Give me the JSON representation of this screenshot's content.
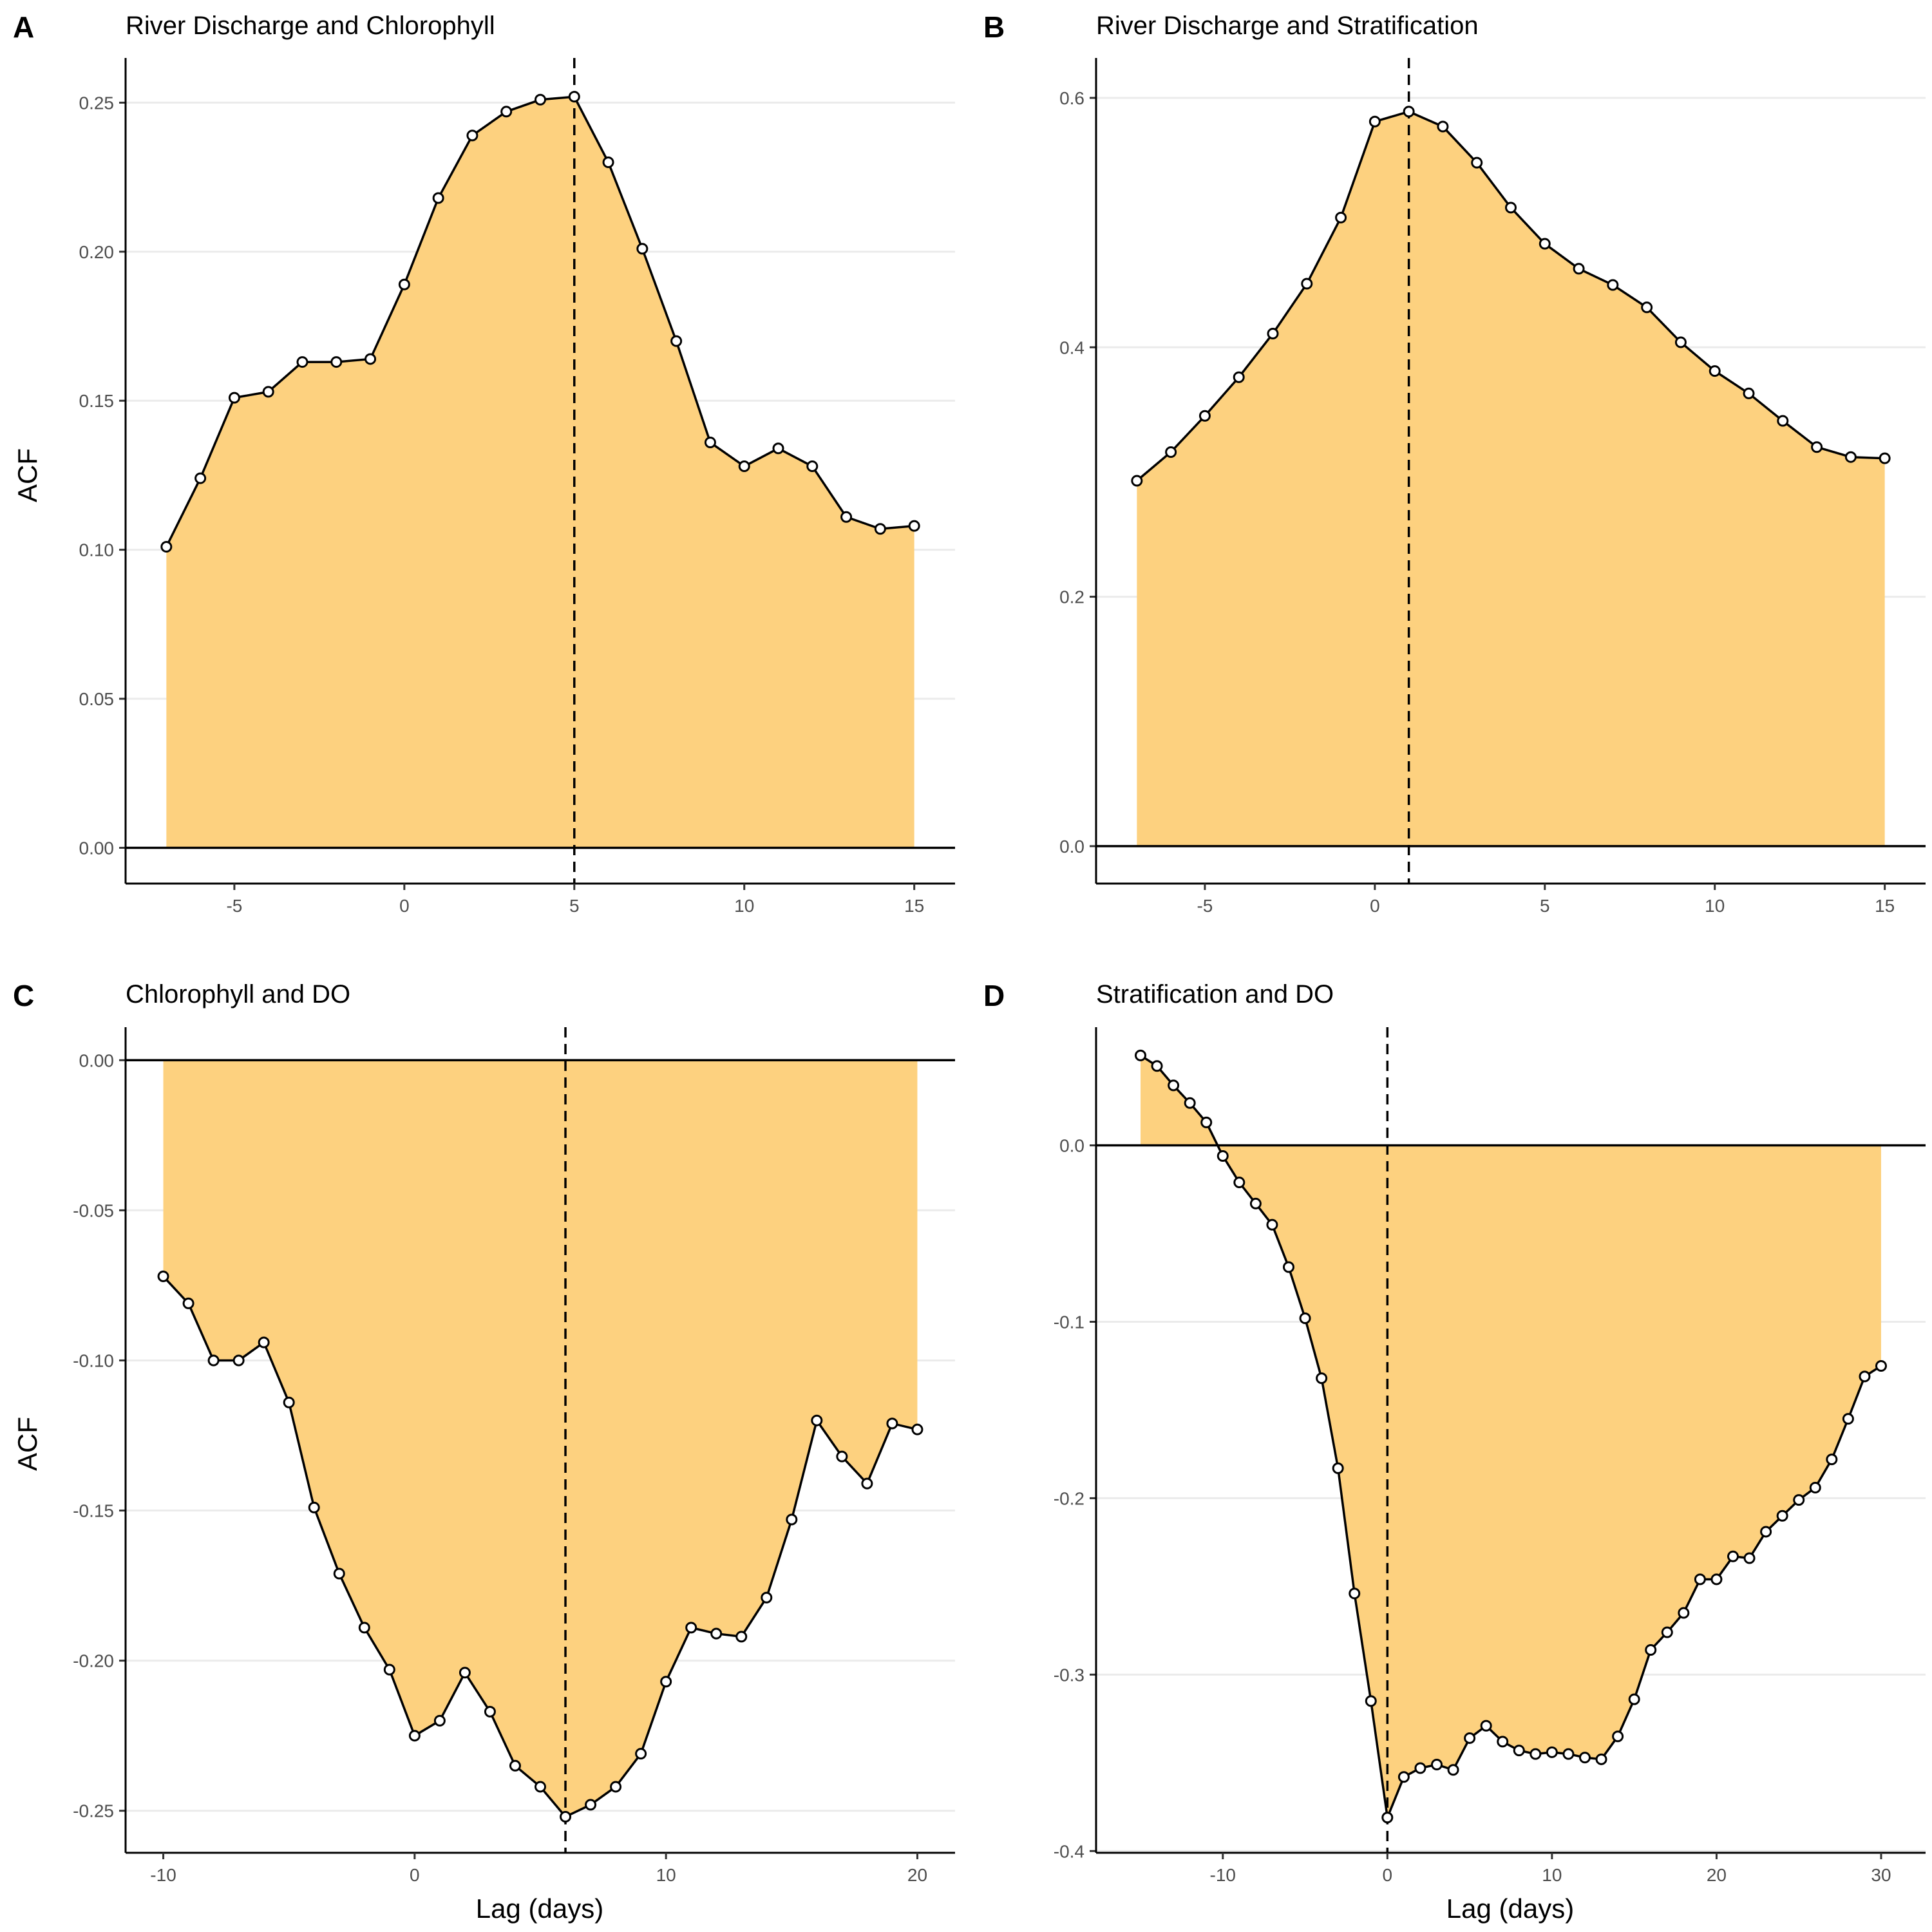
{
  "chart_data": [
    {
      "panel": "A",
      "type": "area",
      "title": "River Discharge and Chlorophyll",
      "xlabel": "",
      "ylabel": "ACF",
      "xlim": [
        -8.2,
        16.2
      ],
      "ylim": [
        -0.012,
        0.265
      ],
      "xticks": [
        -5,
        0,
        5,
        10,
        15
      ],
      "xtick_labels": [
        "-5",
        "0",
        "5",
        "10",
        "15"
      ],
      "yticks": [
        0,
        0.05,
        0.1,
        0.15,
        0.2,
        0.25
      ],
      "ytick_labels": [
        "0.00",
        "0.05",
        "0.10",
        "0.15",
        "0.20",
        "0.25"
      ],
      "vline": 5,
      "x": [
        -7,
        -6,
        -5,
        -4,
        -3,
        -2,
        -1,
        0,
        1,
        2,
        3,
        4,
        5,
        6,
        7,
        8,
        9,
        10,
        11,
        12,
        13,
        14,
        15
      ],
      "y": [
        0.101,
        0.124,
        0.151,
        0.153,
        0.163,
        0.163,
        0.164,
        0.189,
        0.218,
        0.239,
        0.247,
        0.251,
        0.252,
        0.23,
        0.201,
        0.17,
        0.136,
        0.128,
        0.134,
        0.128,
        0.111,
        0.107,
        0.108
      ],
      "grid": "horizontal"
    },
    {
      "panel": "B",
      "type": "area",
      "title": "River Discharge and Stratification",
      "xlabel": "",
      "ylabel": "",
      "xlim": [
        -8.2,
        16.2
      ],
      "ylim": [
        -0.03,
        0.632
      ],
      "xticks": [
        -5,
        0,
        5,
        10,
        15
      ],
      "xtick_labels": [
        "-5",
        "0",
        "5",
        "10",
        "15"
      ],
      "yticks": [
        0,
        0.2,
        0.4,
        0.6
      ],
      "ytick_labels": [
        "0.0",
        "0.2",
        "0.4",
        "0.6"
      ],
      "vline": 1,
      "x": [
        -7,
        -6,
        -5,
        -4,
        -3,
        -2,
        -1,
        0,
        1,
        2,
        3,
        4,
        5,
        6,
        7,
        8,
        9,
        10,
        11,
        12,
        13,
        14,
        15
      ],
      "y": [
        0.293,
        0.316,
        0.345,
        0.376,
        0.411,
        0.451,
        0.504,
        0.581,
        0.589,
        0.577,
        0.548,
        0.512,
        0.483,
        0.463,
        0.45,
        0.432,
        0.404,
        0.381,
        0.363,
        0.341,
        0.32,
        0.312,
        0.311
      ],
      "grid": "horizontal"
    },
    {
      "panel": "C",
      "type": "area",
      "title": "Chlorophyll and DO",
      "xlabel": "Lag (days)",
      "ylabel": "ACF",
      "xlim": [
        -11.5,
        21.5
      ],
      "ylim": [
        -0.264,
        0.011
      ],
      "xticks": [
        -10,
        0,
        10,
        20
      ],
      "xtick_labels": [
        "-10",
        "0",
        "10",
        "20"
      ],
      "yticks": [
        -0.25,
        -0.2,
        -0.15,
        -0.1,
        -0.05,
        0
      ],
      "ytick_labels": [
        "-0.25",
        "-0.20",
        "-0.15",
        "-0.10",
        "-0.05",
        "0.00"
      ],
      "vline": 6,
      "x": [
        -10,
        -9,
        -8,
        -7,
        -6,
        -5,
        -4,
        -3,
        -2,
        -1,
        0,
        1,
        2,
        3,
        4,
        5,
        6,
        7,
        8,
        9,
        10,
        11,
        12,
        13,
        14,
        15,
        16,
        17,
        18,
        19,
        20
      ],
      "y": [
        -0.072,
        -0.081,
        -0.1,
        -0.1,
        -0.094,
        -0.114,
        -0.149,
        -0.171,
        -0.189,
        -0.203,
        -0.225,
        -0.22,
        -0.204,
        -0.217,
        -0.235,
        -0.242,
        -0.252,
        -0.248,
        -0.242,
        -0.231,
        -0.207,
        -0.189,
        -0.191,
        -0.192,
        -0.179,
        -0.153,
        -0.12,
        -0.132,
        -0.141,
        -0.121,
        -0.123
      ],
      "grid": "horizontal"
    },
    {
      "panel": "D",
      "type": "area",
      "title": "Stratification and DO",
      "xlabel": "Lag (days)",
      "ylabel": "",
      "xlim": [
        -17.7,
        32.7
      ],
      "ylim": [
        -0.401,
        0.067
      ],
      "xticks": [
        -10,
        0,
        10,
        20,
        30
      ],
      "xtick_labels": [
        "-10",
        "0",
        "10",
        "20",
        "30"
      ],
      "yticks": [
        -0.4,
        -0.3,
        -0.2,
        -0.1,
        0
      ],
      "ytick_labels": [
        "-0.4",
        "-0.3",
        "-0.2",
        "-0.1",
        "0.0"
      ],
      "vline": 0,
      "x": [
        -15,
        -14,
        -13,
        -12,
        -11,
        -10,
        -9,
        -8,
        -7,
        -6,
        -5,
        -4,
        -3,
        -2,
        -1,
        0,
        1,
        2,
        3,
        4,
        5,
        6,
        7,
        8,
        9,
        10,
        11,
        12,
        13,
        14,
        15,
        16,
        17,
        18,
        19,
        20,
        21,
        22,
        23,
        24,
        25,
        26,
        27,
        28,
        29,
        30
      ],
      "y": [
        0.051,
        0.045,
        0.034,
        0.024,
        0.013,
        -0.006,
        -0.021,
        -0.033,
        -0.045,
        -0.069,
        -0.098,
        -0.132,
        -0.183,
        -0.254,
        -0.315,
        -0.381,
        -0.358,
        -0.353,
        -0.351,
        -0.354,
        -0.336,
        -0.329,
        -0.338,
        -0.343,
        -0.345,
        -0.344,
        -0.345,
        -0.347,
        -0.348,
        -0.335,
        -0.314,
        -0.286,
        -0.276,
        -0.265,
        -0.246,
        -0.246,
        -0.233,
        -0.234,
        -0.219,
        -0.21,
        -0.201,
        -0.194,
        -0.178,
        -0.155,
        -0.131,
        -0.125
      ],
      "grid": "horizontal"
    }
  ]
}
